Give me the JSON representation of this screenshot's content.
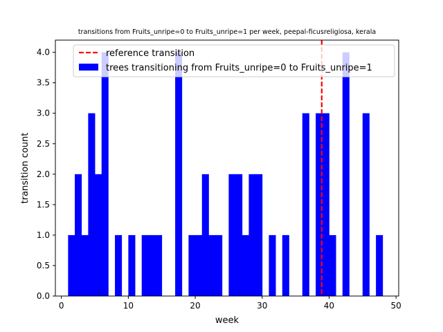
{
  "chart_data": {
    "type": "bar",
    "title": "transitions from Fruits_unripe=0 to Fruits_unripe=1 per week, peepal-ficusreligiosa, kerala",
    "xlabel": "week",
    "ylabel": "transition count",
    "xlim": [
      -0.9,
      50.4
    ],
    "ylim": [
      0,
      4.2
    ],
    "xticks": [
      0,
      10,
      20,
      30,
      40,
      50
    ],
    "yticks": [
      0.0,
      0.5,
      1.0,
      1.5,
      2.0,
      2.5,
      3.0,
      3.5,
      4.0
    ],
    "xtick_labels": [
      "0",
      "10",
      "20",
      "30",
      "40",
      "50"
    ],
    "ytick_labels": [
      "0.0",
      "0.5",
      "1.0",
      "1.5",
      "2.0",
      "2.5",
      "3.0",
      "3.5",
      "4.0"
    ],
    "grid": false,
    "legend_position": "top-right",
    "series": [
      {
        "name": "trees transitioning from Fruits_unripe=0 to Fruits_unripe=1",
        "color": "#0000ff",
        "bars": [
          {
            "x": 1,
            "value": 1
          },
          {
            "x": 2,
            "value": 2
          },
          {
            "x": 3,
            "value": 1
          },
          {
            "x": 4,
            "value": 3
          },
          {
            "x": 5,
            "value": 2
          },
          {
            "x": 6,
            "value": 4
          },
          {
            "x": 8,
            "value": 1
          },
          {
            "x": 10,
            "value": 1
          },
          {
            "x": 12,
            "value": 1
          },
          {
            "x": 13,
            "value": 1
          },
          {
            "x": 14,
            "value": 1
          },
          {
            "x": 17,
            "value": 4
          },
          {
            "x": 19,
            "value": 1
          },
          {
            "x": 20,
            "value": 1
          },
          {
            "x": 21,
            "value": 2
          },
          {
            "x": 22,
            "value": 1
          },
          {
            "x": 23,
            "value": 1
          },
          {
            "x": 25,
            "value": 2
          },
          {
            "x": 26,
            "value": 2
          },
          {
            "x": 27,
            "value": 1
          },
          {
            "x": 28,
            "value": 2
          },
          {
            "x": 29,
            "value": 2
          },
          {
            "x": 31,
            "value": 1
          },
          {
            "x": 33,
            "value": 1
          },
          {
            "x": 36,
            "value": 3
          },
          {
            "x": 38,
            "value": 3
          },
          {
            "x": 39,
            "value": 3
          },
          {
            "x": 40,
            "value": 1
          },
          {
            "x": 42,
            "value": 4
          },
          {
            "x": 45,
            "value": 3
          },
          {
            "x": 47,
            "value": 1
          }
        ]
      }
    ],
    "reference_line": {
      "name": "reference transition",
      "x": 38.9,
      "color": "#ff0000",
      "style": "dashed"
    }
  }
}
